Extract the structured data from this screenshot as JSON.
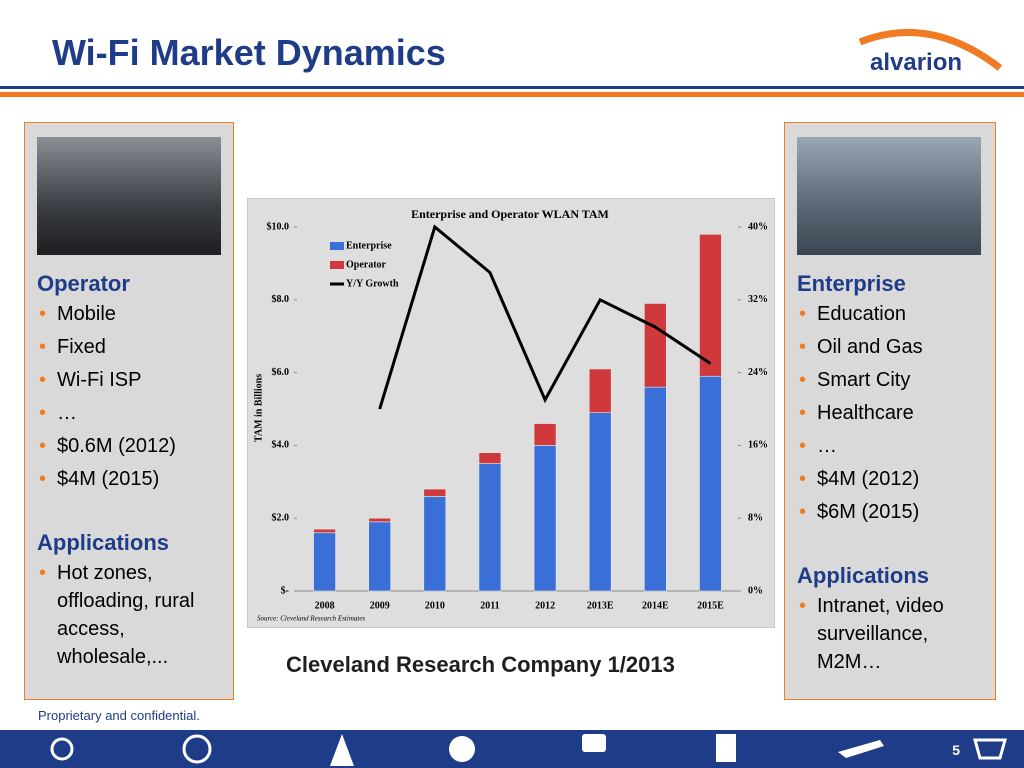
{
  "title": "Wi-Fi Market Dynamics",
  "logo": "alvarion",
  "left_panel": {
    "heading": "Operator",
    "items": [
      "Mobile",
      "Fixed",
      "Wi-Fi ISP",
      "…",
      "$0.6M (2012)",
      "$4M (2015)"
    ],
    "applications_heading": "Applications",
    "applications": [
      "Hot zones, offloading, rural access, wholesale,..."
    ]
  },
  "right_panel": {
    "heading": "Enterprise",
    "items": [
      "Education",
      "Oil and Gas",
      "Smart City",
      "Healthcare",
      "…",
      "$4M (2012)",
      "$6M (2015)"
    ],
    "applications_heading": "Applications",
    "applications": [
      "Intranet, video surveillance, M2M…"
    ]
  },
  "caption": "Cleveland Research Company 1/2013",
  "footer": "Proprietary and confidential.",
  "page_number": "5",
  "chart_data": {
    "type": "bar",
    "stacked": true,
    "title": "Enterprise and Operator WLAN TAM",
    "y_label": "TAM in Billions",
    "source": "Source: Cleveland Research Estimates",
    "categories": [
      "2008",
      "2009",
      "2010",
      "2011",
      "2012",
      "2013E",
      "2014E",
      "2015E"
    ],
    "series": [
      {
        "name": "Enterprise",
        "color": "#3a6fd8",
        "values": [
          1.6,
          1.9,
          2.6,
          3.5,
          4.0,
          4.9,
          5.6,
          5.9
        ]
      },
      {
        "name": "Operator",
        "color": "#d0393b",
        "values": [
          0.1,
          0.1,
          0.2,
          0.3,
          0.6,
          1.2,
          2.3,
          3.9
        ]
      },
      {
        "name": "Y/Y Growth",
        "color": "#000000",
        "type": "line",
        "axis": "y2",
        "values": [
          null,
          20,
          40,
          35,
          21,
          32,
          29,
          25
        ]
      }
    ],
    "ylim": [
      0,
      10
    ],
    "yticks": [
      {
        "value": 0,
        "label": "$-"
      },
      {
        "value": 2,
        "label": "$2.0"
      },
      {
        "value": 4,
        "label": "$4.0"
      },
      {
        "value": 6,
        "label": "$6.0"
      },
      {
        "value": 8,
        "label": "$8.0"
      },
      {
        "value": 10,
        "label": "$10.0"
      }
    ],
    "y2lim": [
      0,
      40
    ],
    "y2ticks": [
      {
        "value": 0,
        "label": "0%"
      },
      {
        "value": 8,
        "label": "8%"
      },
      {
        "value": 16,
        "label": "16%"
      },
      {
        "value": 24,
        "label": "24%"
      },
      {
        "value": 32,
        "label": "32%"
      },
      {
        "value": 40,
        "label": "40%"
      }
    ],
    "grid": false,
    "legend": "upper left"
  }
}
